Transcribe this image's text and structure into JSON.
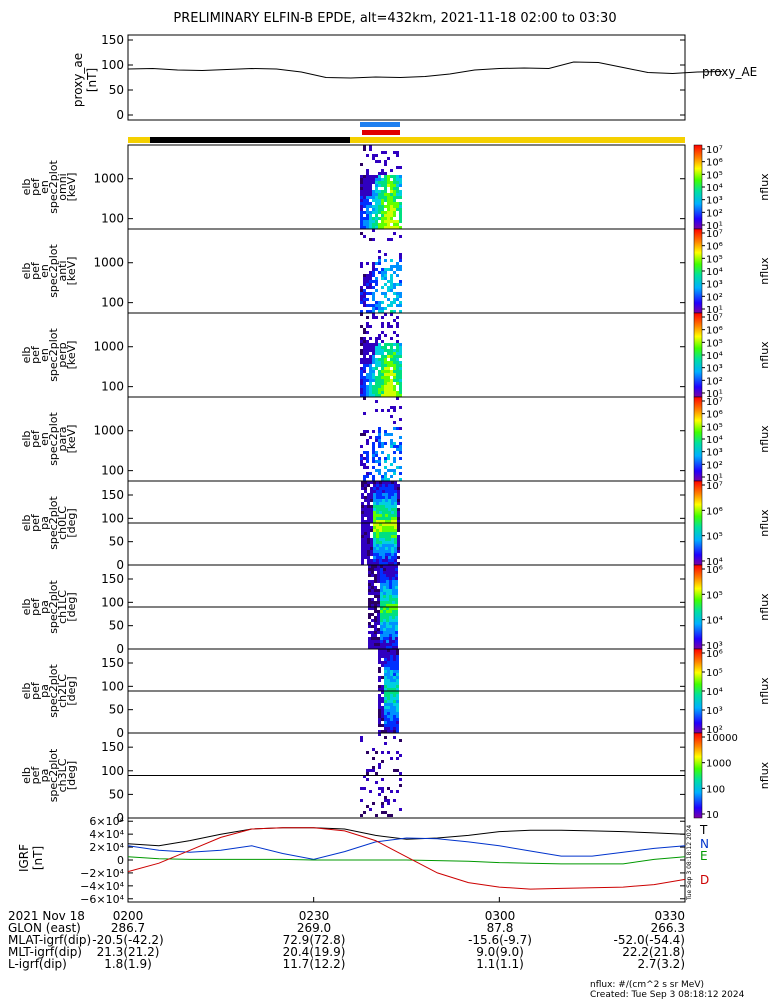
{
  "title": "PRELIMINARY ELFIN-B EPDE, alt=432km, 2021-11-18 02:00 to 03:30",
  "colors": {
    "black": "#000000",
    "blue": "#0033cc",
    "green": "#009900",
    "red": "#cc0000",
    "yellow": "#f5d000",
    "bar_blue": "#1e7ff0",
    "bar_red": "#e00000"
  },
  "chart_data": [
    {
      "type": "line",
      "panel": "proxy_ae",
      "ylabel": [
        "proxy_ae",
        "[nT]"
      ],
      "ylim": [
        -10,
        160
      ],
      "yticks": [
        0,
        50,
        100,
        150
      ],
      "legend": "proxy_AE",
      "x_minutes": [
        0,
        4,
        8,
        12,
        16,
        20,
        24,
        28,
        32,
        36,
        40,
        44,
        48,
        52,
        56,
        60,
        64,
        68,
        72,
        76,
        80,
        84,
        88,
        92,
        96
      ],
      "values": [
        92,
        93,
        90,
        89,
        91,
        93,
        92,
        86,
        75,
        74,
        76,
        75,
        77,
        82,
        90,
        93,
        94,
        93,
        106,
        105,
        95,
        85,
        83,
        86,
        87
      ]
    },
    {
      "type": "heatmap",
      "panel": "omni",
      "ylabel": [
        "elb",
        "pef",
        "en",
        "spec2plot",
        "omni",
        "[keV]"
      ],
      "yscale": "log",
      "ylim": [
        55,
        7000
      ],
      "yticks": [
        100,
        1000
      ],
      "cbar": {
        "label": "nflux",
        "ticks": [
          "10⁷",
          "10⁶",
          "10⁵",
          "10⁴",
          "10³",
          "10²",
          "10¹"
        ],
        "top": "10⁷",
        "bottom": "10¹"
      }
    },
    {
      "type": "heatmap",
      "panel": "anti",
      "ylabel": [
        "elb",
        "pef",
        "en",
        "spec2plot",
        "anti",
        "[keV]"
      ],
      "yscale": "log",
      "ylim": [
        55,
        7000
      ],
      "yticks": [
        100,
        1000
      ],
      "cbar": {
        "label": "nflux",
        "ticks": [
          "10⁷",
          "10⁶",
          "10⁵",
          "10⁴",
          "10³",
          "10²",
          "10¹"
        ]
      }
    },
    {
      "type": "heatmap",
      "panel": "perp",
      "ylabel": [
        "elb",
        "pef",
        "en",
        "spec2plot",
        "perp",
        "[keV]"
      ],
      "yscale": "log",
      "ylim": [
        55,
        7000
      ],
      "yticks": [
        100,
        1000
      ],
      "cbar": {
        "label": "nflux",
        "ticks": [
          "10⁷",
          "10⁶",
          "10⁵",
          "10⁴",
          "10³",
          "10²",
          "10¹"
        ]
      }
    },
    {
      "type": "heatmap",
      "panel": "para",
      "ylabel": [
        "elb",
        "pef",
        "en",
        "spec2plot",
        "para",
        "[keV]"
      ],
      "yscale": "log",
      "ylim": [
        55,
        7000
      ],
      "yticks": [
        100,
        1000
      ],
      "cbar": {
        "label": "nflux",
        "ticks": [
          "10⁷",
          "10⁶",
          "10⁵",
          "10⁴",
          "10³",
          "10²",
          "10¹"
        ]
      }
    },
    {
      "type": "heatmap",
      "panel": "ch0LC",
      "ylabel": [
        "elb",
        "pef",
        "pa",
        "spec2plot",
        "ch0LC",
        "[deg]"
      ],
      "ylim": [
        0,
        180
      ],
      "yticks": [
        0,
        50,
        100,
        150
      ],
      "cbar": {
        "label": "nflux",
        "ticks": [
          "10⁷",
          "10⁶",
          "10⁵",
          "10⁴"
        ]
      }
    },
    {
      "type": "heatmap",
      "panel": "ch1LC",
      "ylabel": [
        "elb",
        "pef",
        "pa",
        "spec2plot",
        "ch1LC",
        "[deg]"
      ],
      "ylim": [
        0,
        180
      ],
      "yticks": [
        0,
        50,
        100,
        150
      ],
      "cbar": {
        "label": "nflux",
        "ticks": [
          "10⁶",
          "10⁵",
          "10⁴",
          "10³"
        ]
      }
    },
    {
      "type": "heatmap",
      "panel": "ch2LC",
      "ylabel": [
        "elb",
        "pef",
        "pa",
        "spec2plot",
        "ch2LC",
        "[deg]"
      ],
      "ylim": [
        0,
        180
      ],
      "yticks": [
        0,
        50,
        100,
        150
      ],
      "cbar": {
        "label": "nflux",
        "ticks": [
          "10⁶",
          "10⁵",
          "10⁴",
          "10³",
          "10²"
        ]
      }
    },
    {
      "type": "heatmap",
      "panel": "ch3LC",
      "ylabel": [
        "elb",
        "pef",
        "pa",
        "spec2plot",
        "ch3LC",
        "[deg]"
      ],
      "ylim": [
        0,
        180
      ],
      "yticks": [
        0,
        50,
        100,
        150
      ],
      "cbar": {
        "label": "nflux",
        "ticks": [
          "10000",
          "1000",
          "100",
          "10"
        ]
      }
    },
    {
      "type": "line",
      "panel": "GRF",
      "ylabel": [
        "IGRF",
        "[nT]"
      ],
      "ylim": [
        -65000,
        65000
      ],
      "yticks": [
        "6×10⁴",
        "4×10⁴",
        "2×10⁴",
        "0",
        "−2×10⁴",
        "−4×10⁴",
        "−6×10⁴"
      ],
      "ytick_values": [
        60000,
        40000,
        20000,
        0,
        -20000,
        -40000,
        -60000
      ],
      "x_minutes": [
        0,
        5,
        10,
        15,
        20,
        25,
        30,
        35,
        40,
        45,
        50,
        55,
        60,
        65,
        70,
        75,
        80,
        85,
        90
      ],
      "series": [
        {
          "name": "T",
          "color": "#000000",
          "values": [
            25000,
            22000,
            30000,
            40000,
            48000,
            50000,
            50000,
            48000,
            38000,
            32000,
            34000,
            38000,
            44000,
            46000,
            46000,
            45000,
            44000,
            42000,
            40000
          ]
        },
        {
          "name": "N",
          "color": "#0033cc",
          "values": [
            22000,
            15000,
            12000,
            15000,
            22000,
            10000,
            1000,
            13000,
            28000,
            34000,
            33000,
            28000,
            22000,
            14000,
            6000,
            6000,
            12000,
            18000,
            22000
          ]
        },
        {
          "name": "E",
          "color": "#009900",
          "values": [
            5000,
            2000,
            1000,
            1000,
            1000,
            1000,
            0,
            0,
            0,
            0,
            -1000,
            -2000,
            -4000,
            -5000,
            -6000,
            -6000,
            -6000,
            1000,
            5000
          ]
        },
        {
          "name": "D",
          "color": "#cc0000",
          "values": [
            -18000,
            -5000,
            15000,
            35000,
            48000,
            50000,
            50000,
            45000,
            30000,
            5000,
            -20000,
            -35000,
            -42000,
            -45000,
            -44000,
            -43000,
            -42000,
            -38000,
            -30000
          ]
        }
      ],
      "xticks": [
        "0200",
        "0230",
        "0300",
        "0330"
      ]
    }
  ],
  "footer": {
    "row_labels": [
      "2021 Nov 18",
      "GLON (east)",
      "MLAT-igrf(dip)",
      "MLT-igrf(dip)",
      "L-igrf(dip)"
    ],
    "columns": [
      [
        "0200",
        "286.7",
        "-20.5(-42.2)",
        "21.3(21.2)",
        "1.8(1.9)"
      ],
      [
        "0230",
        "269.0",
        "72.9(72.8)",
        "20.4(19.9)",
        "11.7(12.2)"
      ],
      [
        "0300",
        "87.8",
        "-15.6(-9.7)",
        "9.0(9.0)",
        "1.1(1.1)"
      ],
      [
        "0330",
        "266.3",
        "-52.0(-54.4)",
        "22.2(21.8)",
        "2.7(3.2)"
      ]
    ],
    "units_note": "nflux: #/(cm^2 s sr MeV)",
    "created": "Created: Tue Sep  3 08:18:12 2024"
  },
  "side_stamp": "Tue Sep  3 08:18:12 2024"
}
